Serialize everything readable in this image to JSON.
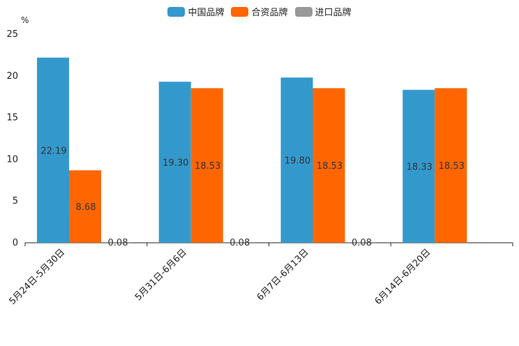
{
  "chart_data": {
    "type": "bar",
    "unit": "%",
    "categories": [
      "5月24日-5月30日",
      "5月31日-6月6日",
      "6月7日-6月13日",
      "6月14日-6月20日"
    ],
    "series": [
      {
        "name": "中国品牌",
        "color": "#3399cc",
        "values": [
          22.19,
          19.3,
          19.8,
          18.33
        ]
      },
      {
        "name": "合资品牌",
        "color": "#ff6600",
        "values": [
          8.68,
          18.53,
          18.53,
          18.53
        ]
      },
      {
        "name": "进口品牌",
        "color": "#999999",
        "values": [
          0.08,
          0.08,
          0.08,
          null
        ]
      }
    ],
    "data_labels": [
      [
        "22.19",
        "19.30",
        "19.80",
        "18.33"
      ],
      [
        "8.68",
        "18.53",
        "18.53",
        "18.53"
      ],
      [
        "0.08",
        "0.08",
        "0.08",
        ""
      ]
    ],
    "yticks": [
      "0",
      "5",
      "10",
      "15",
      "20",
      "25"
    ],
    "ylim": [
      0,
      25
    ],
    "legend_position": "top-center",
    "grid": false
  }
}
